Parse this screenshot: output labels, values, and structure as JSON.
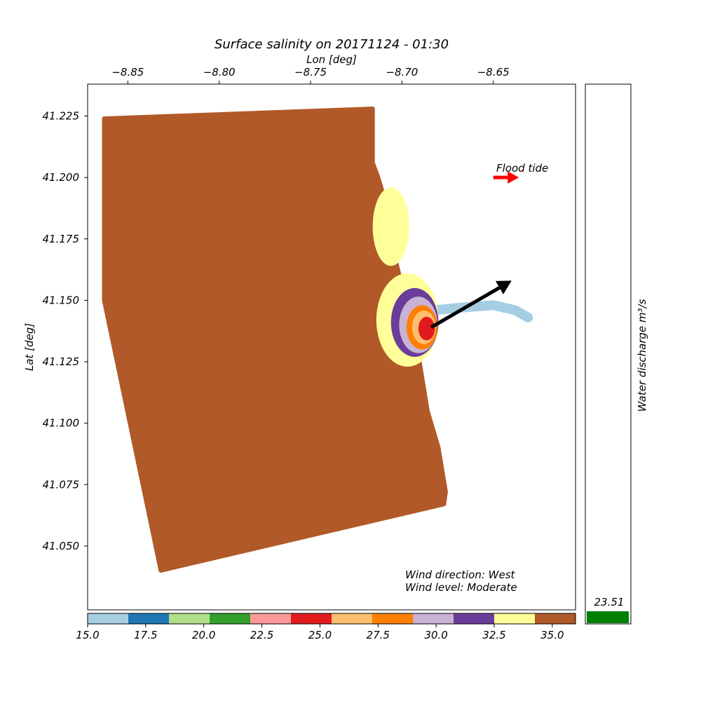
{
  "chart_data": {
    "type": "heatmap",
    "title": "Surface salinity on 20171124 - 01:30",
    "xlabel": "Lon [deg]",
    "ylabel": "Lat [deg]",
    "xlim": [
      -8.872,
      -8.605
    ],
    "ylim": [
      41.024,
      41.238
    ],
    "x_ticks": [
      {
        "value": -8.85,
        "label": "−8.85"
      },
      {
        "value": -8.8,
        "label": "−8.80"
      },
      {
        "value": -8.75,
        "label": "−8.75"
      },
      {
        "value": -8.7,
        "label": "−8.70"
      },
      {
        "value": -8.65,
        "label": "−8.65"
      }
    ],
    "y_ticks": [
      {
        "value": 41.225,
        "label": "41.225"
      },
      {
        "value": 41.2,
        "label": "41.200"
      },
      {
        "value": 41.175,
        "label": "41.175"
      },
      {
        "value": 41.15,
        "label": "41.150"
      },
      {
        "value": 41.125,
        "label": "41.125"
      },
      {
        "value": 41.1,
        "label": "41.100"
      },
      {
        "value": 41.075,
        "label": "41.075"
      },
      {
        "value": 41.05,
        "label": "41.050"
      }
    ],
    "colorbar": {
      "range": [
        15.0,
        36.0
      ],
      "colors": [
        "#a6cee3",
        "#1f78b4",
        "#b2df8a",
        "#33a02c",
        "#fb9a99",
        "#e31a1c",
        "#fdbf6f",
        "#ff7f00",
        "#cab2d6",
        "#6a3d9a",
        "#ffff99",
        "#b15928"
      ],
      "ticks": [
        {
          "value": 15.0,
          "label": "15.0"
        },
        {
          "value": 17.5,
          "label": "17.5"
        },
        {
          "value": 20.0,
          "label": "20.0"
        },
        {
          "value": 22.5,
          "label": "22.5"
        },
        {
          "value": 25.0,
          "label": "25.0"
        },
        {
          "value": 27.5,
          "label": "27.5"
        },
        {
          "value": 30.0,
          "label": "30.0"
        },
        {
          "value": 32.5,
          "label": "32.5"
        },
        {
          "value": 35.0,
          "label": "35.0"
        }
      ]
    },
    "domain_polygon": [
      [
        -8.863,
        41.224
      ],
      [
        -8.716,
        41.228
      ],
      [
        -8.716,
        41.206
      ],
      [
        -8.713,
        41.2
      ],
      [
        -8.709,
        41.19
      ],
      [
        -8.706,
        41.178
      ],
      [
        -8.703,
        41.165
      ],
      [
        -8.698,
        41.15
      ],
      [
        -8.691,
        41.128
      ],
      [
        -8.686,
        41.105
      ],
      [
        -8.68,
        41.09
      ],
      [
        -8.676,
        41.072
      ],
      [
        -8.677,
        41.067
      ],
      [
        -8.832,
        41.04
      ],
      [
        -8.863,
        41.15
      ]
    ],
    "plume_layers": [
      {
        "salinity": 33.5,
        "color": "#ffff99",
        "center": [
          -8.697,
          41.142
        ],
        "radii": [
          0.017,
          0.019
        ]
      },
      {
        "salinity": 31.5,
        "color": "#6a3d9a",
        "center": [
          -8.693,
          41.141
        ],
        "radii": [
          0.013,
          0.014
        ]
      },
      {
        "salinity": 30.0,
        "color": "#cab2d6",
        "center": [
          -8.691,
          41.14
        ],
        "radii": [
          0.0105,
          0.0115
        ]
      },
      {
        "salinity": 28.0,
        "color": "#ff7f00",
        "center": [
          -8.689,
          41.139
        ],
        "radii": [
          0.0085,
          0.009
        ]
      },
      {
        "salinity": 26.5,
        "color": "#fdbf6f",
        "center": [
          -8.688,
          41.139
        ],
        "radii": [
          0.0065,
          0.0068
        ]
      },
      {
        "salinity": 25.0,
        "color": "#e31a1c",
        "center": [
          -8.6865,
          41.1385
        ],
        "radii": [
          0.0045,
          0.0048
        ]
      }
    ],
    "north_plume": {
      "salinity": 33.5,
      "color": "#ffff99",
      "center": [
        -8.706,
        41.18
      ],
      "radii": [
        0.01,
        0.016
      ]
    },
    "river_channel": {
      "salinity": 16.0,
      "color": "#a6cee3",
      "path": [
        [
          -8.682,
          41.146
        ],
        [
          -8.668,
          41.147
        ],
        [
          -8.65,
          41.148
        ],
        [
          -8.638,
          41.146
        ],
        [
          -8.631,
          41.143
        ]
      ]
    },
    "annotations": {
      "flood_tide_label": "Flood tide",
      "flood_tide_arrow": {
        "start": [
          -8.65,
          41.2
        ],
        "end": [
          -8.636,
          41.2
        ],
        "color": "#ff0000"
      },
      "wind_arrow": {
        "start": [
          -8.684,
          41.139
        ],
        "end": [
          -8.64,
          41.158
        ],
        "color": "#000000"
      },
      "wind_direction": "Wind direction: West",
      "wind_level": "Wind level: Moderate"
    },
    "discharge": {
      "label": "Water discharge m³/s",
      "value": 23.51,
      "value_label": "23.51",
      "color": "#008000"
    }
  }
}
